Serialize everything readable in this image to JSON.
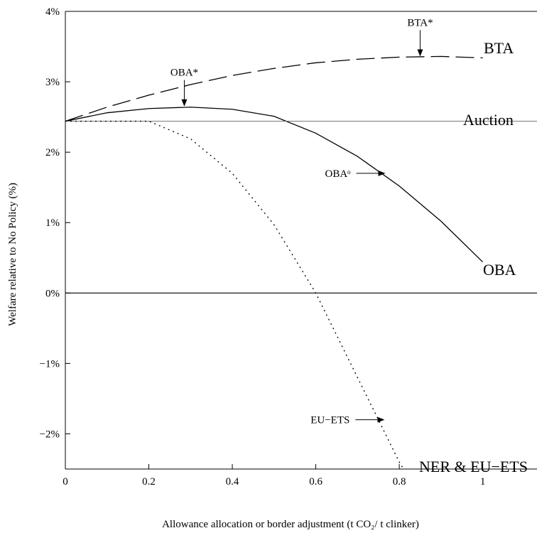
{
  "chart_data": {
    "type": "line",
    "xlabel": "Allowance allocation or border adjustment (t CO₂/ t clinker)",
    "ylabel": "Welfare relative to No Policy (%)",
    "xlim": [
      0,
      1.13
    ],
    "ylim": [
      -2.5,
      4
    ],
    "xticks": [
      0,
      0.2,
      0.4,
      0.6,
      0.8,
      1
    ],
    "xtick_labels": [
      "0",
      "0.2",
      "0.4",
      "0.6",
      "0.8",
      "1"
    ],
    "yticks": [
      -2,
      -1,
      0,
      1,
      2,
      3,
      4
    ],
    "ytick_labels": [
      "−2%",
      "−1%",
      "0%",
      "1%",
      "2%",
      "3%",
      "4%"
    ],
    "grid": false,
    "legend": "none",
    "series": [
      {
        "name": "BTA",
        "style": "dashed",
        "x": [
          0,
          0.1,
          0.2,
          0.3,
          0.4,
          0.5,
          0.6,
          0.7,
          0.8,
          0.9,
          1.0
        ],
        "y": [
          2.44,
          2.64,
          2.81,
          2.96,
          3.09,
          3.19,
          3.27,
          3.32,
          3.35,
          3.36,
          3.34
        ]
      },
      {
        "name": "OBA",
        "style": "solid",
        "x": [
          0,
          0.1,
          0.2,
          0.3,
          0.4,
          0.5,
          0.6,
          0.7,
          0.8,
          0.9,
          1.0
        ],
        "y": [
          2.44,
          2.56,
          2.62,
          2.64,
          2.61,
          2.51,
          2.27,
          1.94,
          1.52,
          1.02,
          0.44
        ]
      },
      {
        "name": "Auction",
        "style": "thin",
        "x": [
          0,
          1.13
        ],
        "y": [
          2.44,
          2.44
        ]
      },
      {
        "name": "NER & EU−ETS",
        "style": "dotted",
        "x": [
          0,
          0.1,
          0.2,
          0.3,
          0.4,
          0.5,
          0.6,
          0.7,
          0.8,
          0.81
        ],
        "y": [
          2.44,
          2.44,
          2.44,
          2.19,
          1.7,
          0.97,
          0.0,
          -1.2,
          -2.4,
          -2.5
        ]
      }
    ],
    "labels": {
      "bta": "BTA",
      "auction": "Auction",
      "oba": "OBA",
      "ner": "NER & EU−ETS",
      "bta_star": "BTA*",
      "oba_star": "OBA*",
      "oba_o": "OBAᵒ",
      "eu_ets": "EU−ETS"
    },
    "annotations": [
      {
        "label_key": "bta_star",
        "text": "BTA",
        "sup": "*",
        "x": 0.85,
        "y": 3.35,
        "direction": "down"
      },
      {
        "label_key": "oba_star",
        "text": "OBA",
        "sup": "*",
        "x": 0.285,
        "y": 2.64,
        "direction": "down"
      },
      {
        "label_key": "oba_o",
        "text": "OBA",
        "sup": "o",
        "x": 0.765,
        "y": 1.7,
        "direction": "right"
      },
      {
        "label_key": "eu_ets",
        "text": "EU−ETS",
        "sup": "",
        "x": 0.763,
        "y": -1.8,
        "direction": "right"
      }
    ]
  }
}
